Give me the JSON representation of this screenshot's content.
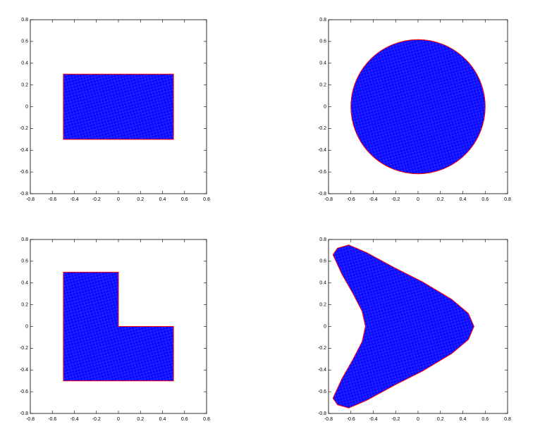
{
  "chart_data": [
    {
      "type": "polygon",
      "x": [
        -0.5,
        0.5,
        0.5,
        -0.5
      ],
      "y": [
        0.3,
        0.3,
        -0.3,
        -0.3
      ],
      "color": "#0a0aff",
      "edge_color": "#ff0000",
      "xlim": [
        -0.8,
        0.8
      ],
      "ylim": [
        -0.8,
        0.8
      ],
      "xticks": [
        -0.8,
        -0.6,
        -0.4,
        -0.2,
        0,
        0.2,
        0.4,
        0.6,
        0.8
      ],
      "yticks": [
        -0.8,
        -0.6,
        -0.4,
        -0.2,
        0,
        0.2,
        0.4,
        0.6,
        0.8
      ]
    },
    {
      "type": "circle",
      "center": [
        0,
        0
      ],
      "radius": 0.6,
      "color": "#0a0aff",
      "edge_color": "#ff0000",
      "xlim": [
        -0.8,
        0.8
      ],
      "ylim": [
        -0.8,
        0.8
      ],
      "xticks": [
        -0.8,
        -0.6,
        -0.4,
        -0.2,
        0,
        0.2,
        0.4,
        0.6,
        0.8
      ],
      "yticks": [
        -0.8,
        -0.6,
        -0.4,
        -0.2,
        0,
        0.2,
        0.4,
        0.6,
        0.8
      ]
    },
    {
      "type": "polygon",
      "x": [
        -0.5,
        0,
        0,
        0.5,
        0.5,
        -0.5
      ],
      "y": [
        0.5,
        0.5,
        0,
        0,
        -0.5,
        -0.5
      ],
      "color": "#0a0aff",
      "edge_color": "#ff0000",
      "xlim": [
        -0.8,
        0.8
      ],
      "ylim": [
        -0.8,
        0.8
      ],
      "xticks": [
        -0.8,
        -0.6,
        -0.4,
        -0.2,
        0,
        0.2,
        0.4,
        0.6,
        0.8
      ],
      "yticks": [
        -0.8,
        -0.6,
        -0.4,
        -0.2,
        0,
        0.2,
        0.4,
        0.6,
        0.8
      ]
    },
    {
      "type": "polygon",
      "x": [
        -0.72,
        -0.62,
        -0.46,
        -0.21,
        0.04,
        0.3,
        0.45,
        0.5,
        0.45,
        0.3,
        0.04,
        -0.21,
        -0.46,
        -0.62,
        -0.72,
        -0.76,
        -0.68,
        -0.58,
        -0.5,
        -0.47,
        -0.5,
        -0.58,
        -0.68,
        -0.76
      ],
      "y": [
        0.72,
        0.75,
        0.68,
        0.54,
        0.41,
        0.25,
        0.12,
        0,
        -0.12,
        -0.25,
        -0.41,
        -0.54,
        -0.68,
        -0.75,
        -0.72,
        -0.66,
        -0.48,
        -0.3,
        -0.14,
        0,
        0.14,
        0.3,
        0.48,
        0.66
      ],
      "color": "#0a0aff",
      "edge_color": "#ff0000",
      "xlim": [
        -0.8,
        0.8
      ],
      "ylim": [
        -0.8,
        0.8
      ],
      "xticks": [
        -0.8,
        -0.6,
        -0.4,
        -0.2,
        0,
        0.2,
        0.4,
        0.6,
        0.8
      ],
      "yticks": [
        -0.8,
        -0.6,
        -0.4,
        -0.2,
        0,
        0.2,
        0.4,
        0.6,
        0.8
      ]
    }
  ]
}
